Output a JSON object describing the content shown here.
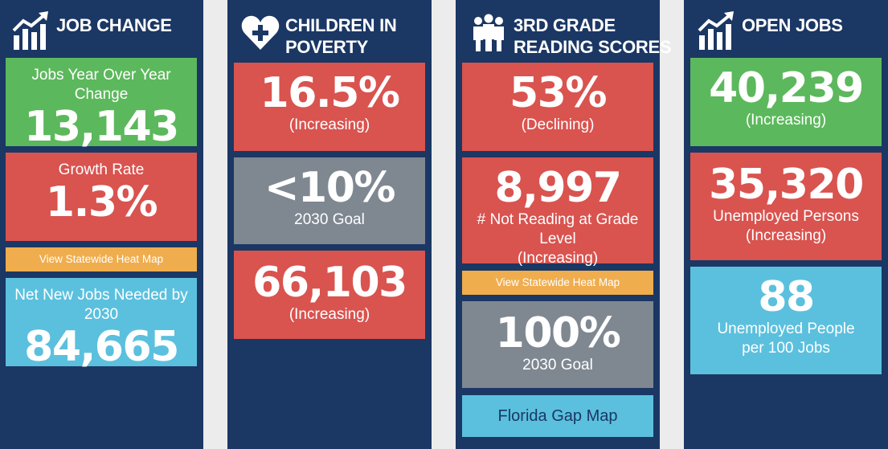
{
  "job_change": {
    "title": "JOB CHANGE",
    "icon": "growth-chart-icon",
    "yoy_label": "Jobs Year Over Year Change",
    "yoy_value": "13,143",
    "growth_label": "Growth Rate",
    "growth_value": "1.3%",
    "heatmap_link": "View Statewide Heat Map",
    "needed_label": "Net New Jobs Needed by 2030",
    "needed_value": "84,665"
  },
  "poverty": {
    "title_line1": "CHILDREN IN",
    "title_line2": "POVERTY",
    "icon": "heart-plus-icon",
    "rate_value": "16.5%",
    "rate_status": "(Increasing)",
    "goal_value": "<10%",
    "goal_label": "2030 Goal",
    "count_value": "66,103",
    "count_status": "(Increasing)"
  },
  "reading": {
    "title_line1": "3RD GRADE",
    "title_line2": "READING SCORES",
    "icon": "people-group-icon",
    "score_value": "53%",
    "score_status": "(Declining)",
    "not_reading_value": "8,997",
    "not_reading_label": "# Not Reading at Grade Level",
    "not_reading_status": "(Increasing)",
    "heatmap_link": "View Statewide Heat Map",
    "goal_value": "100%",
    "goal_label": "2030 Goal",
    "gap_map_link": "Florida Gap Map"
  },
  "open_jobs": {
    "title": "OPEN JOBS",
    "icon": "growth-chart-icon",
    "jobs_value": "40,239",
    "jobs_status": "(Increasing)",
    "unemployed_value": "35,320",
    "unemployed_label": "Unemployed Persons",
    "unemployed_status": "(Increasing)",
    "ratio_value": "88",
    "ratio_label": "Unemployed People per 100 Jobs"
  },
  "colors": {
    "navy": "#1b3764",
    "green": "#5cb85c",
    "red": "#d9534f",
    "gray": "#7f8891",
    "blue": "#5bc0de",
    "orange": "#f0ad4e"
  }
}
